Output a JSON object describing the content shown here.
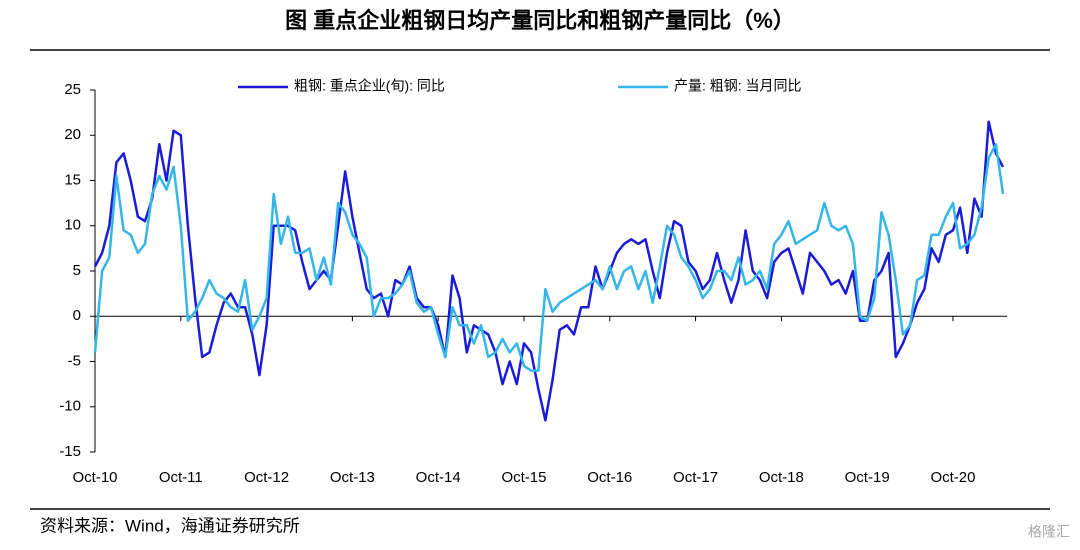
{
  "chart_data": {
    "type": "line",
    "title": "图  重点企业粗钢日均产量同比和粗钢产量同比（%）",
    "source": "资料来源：Wind，海通证券研究所",
    "watermark": "格隆汇",
    "categories": [
      "Oct-10",
      null,
      null,
      null,
      null,
      null,
      null,
      null,
      null,
      null,
      null,
      null,
      "Oct-11",
      null,
      null,
      null,
      null,
      null,
      null,
      null,
      null,
      null,
      null,
      null,
      "Oct-12",
      null,
      null,
      null,
      null,
      null,
      null,
      null,
      null,
      null,
      null,
      null,
      "Oct-13",
      null,
      null,
      null,
      null,
      null,
      null,
      null,
      null,
      null,
      null,
      null,
      "Oct-14",
      null,
      null,
      null,
      null,
      null,
      null,
      null,
      null,
      null,
      null,
      null,
      "Oct-15",
      null,
      null,
      null,
      null,
      null,
      null,
      null,
      null,
      null,
      null,
      null,
      "Oct-16",
      null,
      null,
      null,
      null,
      null,
      null,
      null,
      null,
      null,
      null,
      null,
      "Oct-17",
      null,
      null,
      null,
      null,
      null,
      null,
      null,
      null,
      null,
      null,
      null,
      "Oct-18",
      null,
      null,
      null,
      null,
      null,
      null,
      null,
      null,
      null,
      null,
      null,
      "Oct-19",
      null,
      null,
      null,
      null,
      null,
      null,
      null,
      null,
      null,
      null,
      null,
      "Oct-20",
      null,
      null,
      null,
      null,
      null,
      null,
      null
    ],
    "series": [
      {
        "name": "粗钢: 重点企业(旬): 同比",
        "color": "#1c1cd8",
        "values": [
          5.5,
          7,
          10,
          17,
          18,
          15,
          11,
          10.5,
          13,
          19,
          15,
          20.5,
          20,
          10,
          2,
          -4.5,
          -4,
          -1,
          1.5,
          2.5,
          1,
          1,
          -2,
          -6.5,
          -1,
          10,
          10,
          10,
          9.5,
          6,
          3,
          4,
          5,
          4,
          10,
          16,
          11,
          7,
          3,
          2,
          2.5,
          0,
          4,
          3.5,
          5.5,
          2,
          1,
          1,
          -1,
          -4.5,
          4.5,
          2,
          -4,
          -1,
          -1.5,
          -2,
          -4,
          -7.5,
          -5,
          -7.5,
          -3,
          -4,
          -8,
          -11.5,
          -7,
          -1.5,
          -1,
          -2,
          1,
          1,
          5.5,
          3,
          5,
          7,
          8,
          8.5,
          8,
          8.5,
          5,
          2,
          7,
          10.5,
          10,
          6,
          5,
          3,
          4,
          7,
          4,
          1.5,
          4,
          9.5,
          5,
          4,
          2,
          6,
          7,
          7.5,
          5,
          2.5,
          7,
          6,
          5,
          3.5,
          4,
          2.5,
          5,
          -0.5,
          -0.5,
          4,
          5,
          7,
          -4.5,
          -3,
          -1,
          1.5,
          3,
          7.5,
          6,
          9,
          9.5,
          12,
          7,
          13,
          11,
          21.5,
          18,
          16.5
        ]
      },
      {
        "name": "产量: 粗钢: 当月同比",
        "color": "#35b6e8",
        "values": [
          -4,
          5,
          6.5,
          15.5,
          9.5,
          9,
          7,
          8,
          13.5,
          15.5,
          14,
          16.5,
          10,
          -0.5,
          0.5,
          2,
          4,
          2.5,
          2,
          1,
          0.5,
          4,
          -1.5,
          0,
          2,
          13.5,
          8,
          11,
          7,
          7,
          7.5,
          4,
          6.5,
          3.5,
          12.5,
          11.5,
          9,
          8,
          6.5,
          0,
          2,
          2,
          2.5,
          3.5,
          5,
          1.5,
          0.5,
          1,
          -2,
          -4.5,
          1,
          -1,
          -1,
          -3,
          -1,
          -4.5,
          -4,
          -2.5,
          -4,
          -3,
          -5.5,
          -6,
          -6,
          3,
          0.5,
          1.5,
          2,
          2.5,
          3,
          3.5,
          4,
          3,
          5.5,
          3,
          5,
          5.5,
          3,
          5,
          1.5,
          5.5,
          10,
          9,
          6.5,
          5.5,
          4,
          2,
          3,
          5,
          5,
          4,
          6.5,
          3.5,
          4,
          5,
          3,
          8,
          9,
          10.5,
          8,
          8.5,
          9,
          9.5,
          12.5,
          10,
          9.5,
          10,
          8,
          0,
          -0.5,
          2,
          11.5,
          9,
          4,
          -2,
          -1,
          4,
          4.5,
          9,
          9,
          11,
          12.5,
          7.5,
          8,
          9,
          12,
          17.5,
          19,
          13.5
        ]
      }
    ],
    "ylim": [
      -15,
      25
    ],
    "yticks": [
      -15,
      -10,
      -5,
      0,
      5,
      10,
      15,
      20,
      25
    ],
    "grid": false,
    "legend": "top"
  }
}
